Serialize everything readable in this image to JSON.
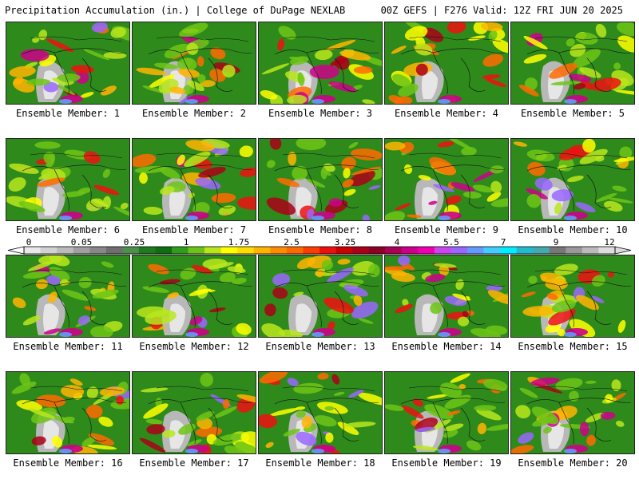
{
  "header": {
    "title_left": "Precipitation Accumulation (in.) | College of DuPage NEXLAB",
    "title_right": "00Z GEFS | F276 Valid: 12Z FRI JUN 20 2025"
  },
  "panels": [
    {
      "label": "Ensemble Member: 1"
    },
    {
      "label": "Ensemble Member: 2"
    },
    {
      "label": "Ensemble Member: 3"
    },
    {
      "label": "Ensemble Member: 4"
    },
    {
      "label": "Ensemble Member: 5"
    },
    {
      "label": "Ensemble Member: 6"
    },
    {
      "label": "Ensemble Member: 7"
    },
    {
      "label": "Ensemble Member: 8"
    },
    {
      "label": "Ensemble Member: 9"
    },
    {
      "label": "Ensemble Member: 10"
    },
    {
      "label": "Ensemble Member: 11"
    },
    {
      "label": "Ensemble Member: 12"
    },
    {
      "label": "Ensemble Member: 13"
    },
    {
      "label": "Ensemble Member: 14"
    },
    {
      "label": "Ensemble Member: 15"
    },
    {
      "label": "Ensemble Member: 16"
    },
    {
      "label": "Ensemble Member: 17"
    },
    {
      "label": "Ensemble Member: 18"
    },
    {
      "label": "Ensemble Member: 19"
    },
    {
      "label": "Ensemble Member: 20"
    }
  ],
  "legend": {
    "tick_labels": [
      "0",
      "0.05",
      "0.25",
      "1",
      "1.75",
      "2.5",
      "3.25",
      "4",
      "5.5",
      "7",
      "9",
      "12"
    ],
    "colors": [
      "#e8e8e8",
      "#d2d2d2",
      "#bbbbbb",
      "#a0a0a0",
      "#888888",
      "#6e6e6e",
      "#4e8f4e",
      "#1f7a1f",
      "#0f6e0f",
      "#2e9e1a",
      "#6dc416",
      "#b8e61c",
      "#ffff00",
      "#ffdd00",
      "#ffb400",
      "#ff8c00",
      "#ff6a00",
      "#ff3c00",
      "#ee1010",
      "#cc0000",
      "#aa0018",
      "#8c0024",
      "#aa0055",
      "#cc0088",
      "#ee00b0",
      "#cc44ee",
      "#9966ff",
      "#6699ff",
      "#44ccff",
      "#00eeff",
      "#22bbcc",
      "#44aaaa",
      "#777777",
      "#999999",
      "#bbbbbb",
      "#dddddd"
    ]
  }
}
